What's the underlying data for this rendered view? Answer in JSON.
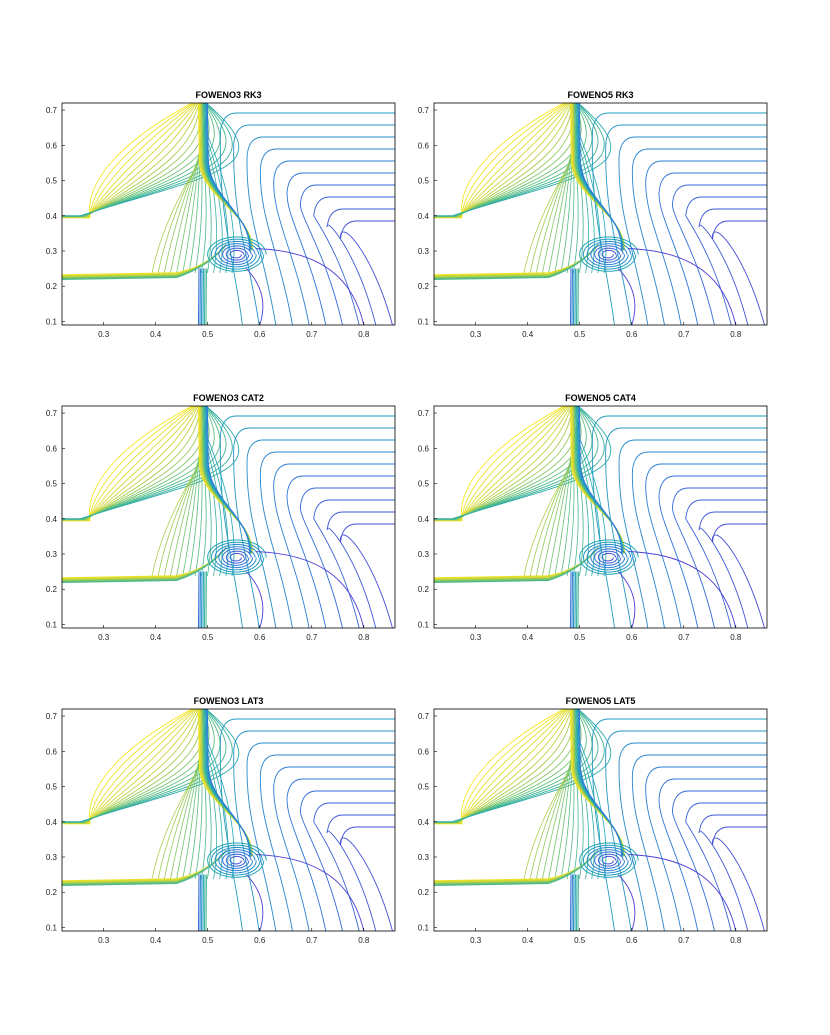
{
  "figure": {
    "description_colors": {
      "low": "#4b3fd6",
      "mid_low": "#2d7ad8",
      "mid": "#1fa6b8",
      "mid_high": "#5cbf7a",
      "high": "#c9d33a",
      "top": "#f5e620"
    }
  },
  "chart_data": [
    {
      "type": "contour",
      "title": "FOWENO3 RK3",
      "xlim": [
        0.22,
        0.86
      ],
      "ylim": [
        0.09,
        0.72
      ],
      "xticks": [
        "0.3",
        "0.4",
        "0.5",
        "0.6",
        "0.7",
        "0.8"
      ],
      "yticks": [
        "0.1",
        "0.2",
        "0.3",
        "0.4",
        "0.5",
        "0.6",
        "0.7"
      ],
      "shock_x": 0.49,
      "vortex_center": [
        0.555,
        0.29
      ],
      "grid": false
    },
    {
      "type": "contour",
      "title": "FOWENO5 RK3",
      "xlim": [
        0.22,
        0.86
      ],
      "ylim": [
        0.09,
        0.72
      ],
      "xticks": [
        "0.3",
        "0.4",
        "0.5",
        "0.6",
        "0.7",
        "0.8"
      ],
      "yticks": [
        "0.1",
        "0.2",
        "0.3",
        "0.4",
        "0.5",
        "0.6",
        "0.7"
      ],
      "shock_x": 0.49,
      "vortex_center": [
        0.555,
        0.29
      ],
      "grid": false
    },
    {
      "type": "contour",
      "title": "FOWENO3 CAT2",
      "xlim": [
        0.22,
        0.86
      ],
      "ylim": [
        0.09,
        0.72
      ],
      "xticks": [
        "0.3",
        "0.4",
        "0.5",
        "0.6",
        "0.7",
        "0.8"
      ],
      "yticks": [
        "0.1",
        "0.2",
        "0.3",
        "0.4",
        "0.5",
        "0.6",
        "0.7"
      ],
      "shock_x": 0.49,
      "vortex_center": [
        0.555,
        0.29
      ],
      "grid": false
    },
    {
      "type": "contour",
      "title": "FOWENO5 CAT4",
      "xlim": [
        0.22,
        0.86
      ],
      "ylim": [
        0.09,
        0.72
      ],
      "xticks": [
        "0.3",
        "0.4",
        "0.5",
        "0.6",
        "0.7",
        "0.8"
      ],
      "yticks": [
        "0.1",
        "0.2",
        "0.3",
        "0.4",
        "0.5",
        "0.6",
        "0.7"
      ],
      "shock_x": 0.49,
      "vortex_center": [
        0.555,
        0.29
      ],
      "grid": false
    },
    {
      "type": "contour",
      "title": "FOWENO3 LAT3",
      "xlim": [
        0.22,
        0.86
      ],
      "ylim": [
        0.09,
        0.72
      ],
      "xticks": [
        "0.3",
        "0.4",
        "0.5",
        "0.6",
        "0.7",
        "0.8"
      ],
      "yticks": [
        "0.1",
        "0.2",
        "0.3",
        "0.4",
        "0.5",
        "0.6",
        "0.7"
      ],
      "shock_x": 0.49,
      "vortex_center": [
        0.555,
        0.29
      ],
      "grid": false
    },
    {
      "type": "contour",
      "title": "FOWENO5 LAT5",
      "xlim": [
        0.22,
        0.86
      ],
      "ylim": [
        0.09,
        0.72
      ],
      "xticks": [
        "0.3",
        "0.4",
        "0.5",
        "0.6",
        "0.7",
        "0.8"
      ],
      "yticks": [
        "0.1",
        "0.2",
        "0.3",
        "0.4",
        "0.5",
        "0.6",
        "0.7"
      ],
      "shock_x": 0.49,
      "vortex_center": [
        0.555,
        0.29
      ],
      "grid": false
    }
  ]
}
